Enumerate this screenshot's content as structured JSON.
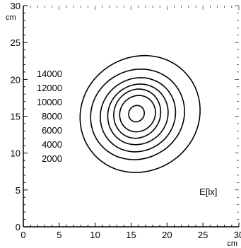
{
  "chart_data": {
    "type": "contour",
    "title": "",
    "xlabel": "",
    "ylabel": "",
    "x_unit": "cm",
    "y_unit": "cm",
    "quantity_label": "E[lx]",
    "xlim": [
      0,
      30
    ],
    "ylim": [
      0,
      30
    ],
    "x_ticks": [
      0,
      5,
      10,
      15,
      20,
      25,
      30
    ],
    "y_ticks": [
      0,
      5,
      10,
      15,
      20,
      25,
      30
    ],
    "x_tick_labels": [
      "0",
      "5",
      "10",
      "15",
      "20",
      "25",
      "30"
    ],
    "y_tick_labels": [
      "0",
      "5",
      "10",
      "15",
      "20",
      "25",
      "30"
    ],
    "center": [
      15.8,
      15.3
    ],
    "levels": [
      {
        "label": "2000",
        "value": 2000,
        "x_range": [
          8.2,
          24.3
        ],
        "y_range": [
          7.1,
          23.5
        ]
      },
      {
        "label": "4000",
        "value": 4000,
        "x_range": [
          9.6,
          22.2
        ],
        "y_range": [
          8.9,
          21.6
        ]
      },
      {
        "label": "6000",
        "value": 6000,
        "x_range": [
          10.9,
          21.0
        ],
        "y_range": [
          10.0,
          20.4
        ]
      },
      {
        "label": "8000",
        "value": 8000,
        "x_range": [
          11.9,
          20.0
        ],
        "y_range": [
          11.0,
          19.5
        ]
      },
      {
        "label": "10000",
        "value": 10000,
        "x_range": [
          12.7,
          19.0
        ],
        "y_range": [
          11.9,
          18.8
        ]
      },
      {
        "label": "12000",
        "value": 12000,
        "x_range": [
          13.5,
          18.3
        ],
        "y_range": [
          12.8,
          17.9
        ]
      },
      {
        "label": "14000",
        "value": 14000,
        "x_range": [
          14.7,
          16.8
        ],
        "y_range": [
          14.2,
          16.5
        ]
      }
    ],
    "grid": false,
    "legend": "left"
  }
}
